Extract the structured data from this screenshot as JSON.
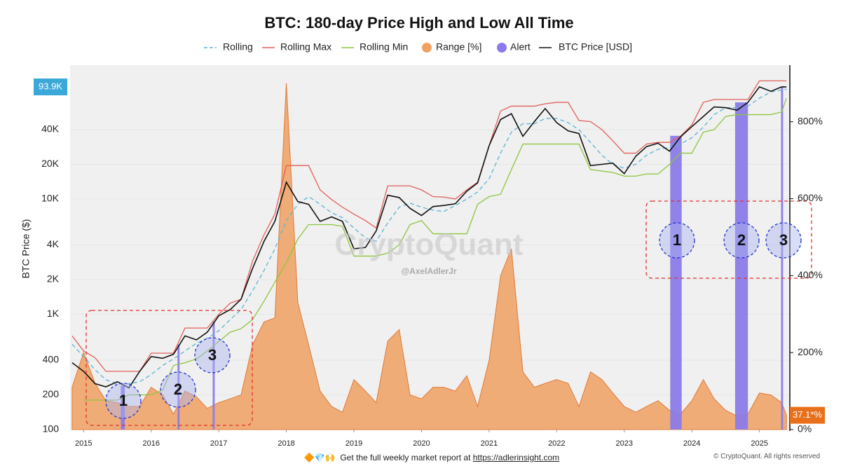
{
  "chart_data": {
    "type": "line",
    "title": "BTC: 180-day Price High and Low All Time",
    "ylabel": "BTC Price ($)",
    "watermark": "CryptoQuant",
    "credit": "@AxelAdlerJr",
    "log_y": true,
    "grid": true,
    "xlim": [
      2014.8,
      2025.45
    ],
    "ylim": [
      100,
      145000
    ],
    "y2lim": [
      0,
      947
    ],
    "xticks": [
      2015,
      2016,
      2017,
      2018,
      2019,
      2020,
      2021,
      2022,
      2023,
      2024,
      2025
    ],
    "yticks": [
      100,
      200,
      400,
      {
        "value": 1000,
        "label": "1K"
      },
      {
        "value": 2000,
        "label": "2K"
      },
      {
        "value": 4000,
        "label": "4K"
      },
      {
        "value": 10000,
        "label": "10K"
      },
      {
        "value": 20000,
        "label": "20K"
      },
      {
        "value": 40000,
        "label": "40K"
      }
    ],
    "y2ticks": [
      {
        "value": 0,
        "label": "0%"
      },
      {
        "value": 200,
        "label": "200%"
      },
      {
        "value": 400,
        "label": "400%"
      },
      {
        "value": 600,
        "label": "600%"
      },
      {
        "value": 800,
        "label": "800%"
      }
    ],
    "x": [
      2014.83,
      2015,
      2015.17,
      2015.33,
      2015.5,
      2015.67,
      2015.83,
      2016,
      2016.17,
      2016.33,
      2016.5,
      2016.67,
      2016.83,
      2017,
      2017.17,
      2017.33,
      2017.5,
      2017.67,
      2017.83,
      2018,
      2018.17,
      2018.33,
      2018.5,
      2018.67,
      2018.83,
      2019,
      2019.17,
      2019.33,
      2019.5,
      2019.67,
      2019.83,
      2020,
      2020.17,
      2020.33,
      2020.5,
      2020.67,
      2020.83,
      2021,
      2021.17,
      2021.33,
      2021.5,
      2021.67,
      2021.83,
      2022,
      2022.17,
      2022.33,
      2022.5,
      2022.67,
      2022.83,
      2023,
      2023.17,
      2023.33,
      2023.5,
      2023.67,
      2023.83,
      2024,
      2024.17,
      2024.33,
      2024.5,
      2024.67,
      2024.83,
      2025,
      2025.17,
      2025.33,
      2025.4
    ],
    "series": [
      {
        "name": "Rolling",
        "color": "#5ab4d6",
        "dashed": true,
        "values": [
          550,
          430,
          330,
          270,
          250,
          250,
          260,
          300,
          360,
          410,
          480,
          560,
          620,
          720,
          900,
          1100,
          1600,
          2400,
          3700,
          6500,
          9000,
          10500,
          9000,
          7600,
          6900,
          5600,
          4600,
          4300,
          6200,
          8500,
          9200,
          8500,
          8000,
          7800,
          8800,
          10000,
          11500,
          15000,
          25000,
          38000,
          45000,
          45000,
          50000,
          50000,
          46000,
          40000,
          31000,
          24000,
          20000,
          18500,
          20000,
          24000,
          27000,
          28000,
          30000,
          34000,
          42000,
          54000,
          62000,
          62000,
          64000,
          75000,
          85000,
          88000,
          90000
        ]
      },
      {
        "name": "Rolling Max",
        "color": "#e0605a",
        "values": [
          650,
          480,
          420,
          320,
          320,
          320,
          320,
          460,
          460,
          460,
          760,
          760,
          760,
          1000,
          1250,
          1350,
          2900,
          4900,
          7400,
          19500,
          19500,
          19500,
          12000,
          9900,
          8500,
          7400,
          6500,
          5600,
          13000,
          13000,
          13000,
          12000,
          10500,
          10400,
          10000,
          12000,
          14000,
          29000,
          58000,
          64000,
          64000,
          64000,
          67000,
          69000,
          69000,
          48000,
          47000,
          40000,
          32000,
          25000,
          25000,
          30000,
          31000,
          31000,
          35000,
          44000,
          69000,
          73000,
          73000,
          73000,
          73000,
          106000,
          106000,
          106000,
          106000
        ]
      },
      {
        "name": "Rolling Min",
        "color": "#8cc63e",
        "values": [
          null,
          180,
          180,
          180,
          180,
          200,
          200,
          200,
          220,
          360,
          380,
          410,
          480,
          580,
          700,
          750,
          900,
          1300,
          1900,
          2800,
          4500,
          6000,
          6000,
          6000,
          5800,
          3200,
          3200,
          3200,
          3400,
          4000,
          6000,
          6500,
          5000,
          5000,
          5000,
          5000,
          9000,
          10500,
          11000,
          18000,
          30000,
          30000,
          30000,
          30000,
          30000,
          30000,
          18000,
          17500,
          17000,
          15800,
          15800,
          16500,
          16500,
          20000,
          25000,
          25000,
          38000,
          40000,
          52000,
          54000,
          54000,
          54000,
          54000,
          57000,
          75000
        ]
      },
      {
        "name": "Range [%]",
        "color": "#f0a060",
        "axis": "y2",
        "area": true,
        "values": [
          110,
          200,
          120,
          75,
          70,
          60,
          60,
          110,
          90,
          40,
          100,
          85,
          55,
          70,
          80,
          90,
          220,
          280,
          290,
          900,
          330,
          220,
          100,
          60,
          45,
          130,
          100,
          70,
          230,
          260,
          90,
          80,
          110,
          110,
          100,
          140,
          60,
          180,
          400,
          470,
          150,
          110,
          120,
          130,
          120,
          60,
          150,
          130,
          95,
          60,
          45,
          60,
          75,
          50,
          40,
          75,
          130,
          80,
          50,
          35,
          40,
          95,
          90,
          70,
          37.1
        ]
      },
      {
        "name": "Alert",
        "color": "#8a7be8",
        "intervals": [
          [
            2015.55,
            2015.61
          ],
          [
            2016.39,
            2016.42
          ],
          [
            2016.91,
            2016.94
          ],
          [
            2023.68,
            2023.85
          ],
          [
            2024.64,
            2024.83
          ],
          [
            2025.32,
            2025.35
          ]
        ]
      },
      {
        "name": "BTC Price [USD]",
        "color": "#111111",
        "values": [
          380,
          320,
          250,
          235,
          260,
          230,
          320,
          430,
          415,
          450,
          650,
          600,
          700,
          970,
          1100,
          1350,
          2500,
          4300,
          6400,
          14000,
          9500,
          9000,
          6400,
          7000,
          6400,
          3700,
          3800,
          5300,
          10800,
          10300,
          8300,
          7200,
          8600,
          8800,
          9100,
          11700,
          13800,
          29000,
          49000,
          55000,
          35000,
          47000,
          61000,
          46000,
          39000,
          37000,
          19500,
          20000,
          20500,
          16600,
          23500,
          28500,
          30500,
          26000,
          34500,
          42500,
          52000,
          63000,
          62000,
          59000,
          69000,
          94000,
          86000,
          94000,
          93900
        ]
      }
    ],
    "last_labels": [
      {
        "text": "93.9K",
        "value": 93900,
        "axis": "y",
        "color": "#3aa8d8"
      },
      {
        "text": "37.1*%",
        "value": 37.1,
        "axis": "y2",
        "color": "#e8701a"
      }
    ],
    "callouts": [
      "1",
      "2",
      "3",
      "1",
      "2",
      "3"
    ]
  },
  "footer": {
    "icons": "🔶💎🙌",
    "text": "Get the full weekly market report at",
    "link": "https://adlerinsight.com",
    "copyright": "© CryptoQuant. All rights reserved"
  }
}
